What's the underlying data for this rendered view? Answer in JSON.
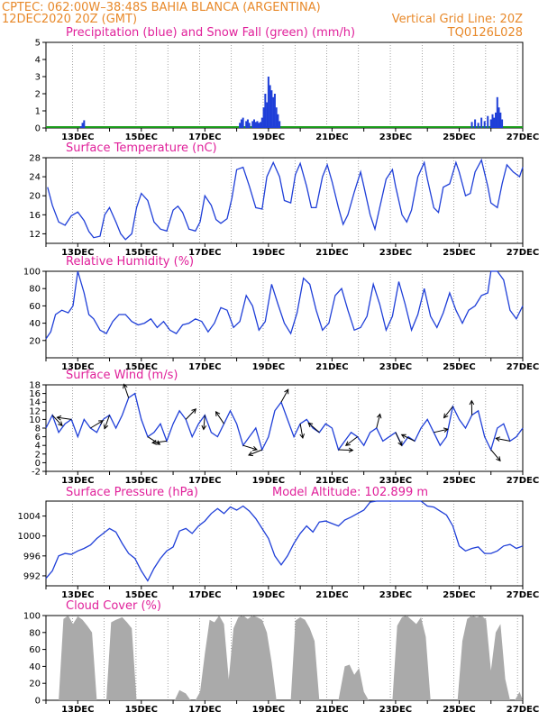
{
  "header": {
    "line1": "CPTEC:   062:00W–38:48S   BAHIA BLANCA (ARGENTINA)",
    "line2_left": "12DEC2020 20Z (GMT)",
    "line2_right": "Vertical Grid Line: 20Z",
    "line3_right": "TQ0126L028"
  },
  "x_tick_labels": [
    "13DEC",
    "15DEC",
    "17DEC",
    "19DEC",
    "21DEC",
    "23DEC",
    "25DEC",
    "27DEC"
  ],
  "colors": {
    "line": "#1f3fd8",
    "precip": "#1f3fd8",
    "snow": "#1a9a1a",
    "cloud": "#aaaaaa",
    "title": "#e0209a",
    "header": "#e8892a"
  },
  "chart_data": [
    {
      "type": "bar",
      "title": "Precipitation (blue) and Snow Fall (green) (mm/h)",
      "ylim": [
        0,
        5
      ],
      "yticks": [
        0,
        1,
        2,
        3,
        4,
        5
      ],
      "series": [
        {
          "name": "Precipitation",
          "values": [
            [
              13.1,
              0.1
            ],
            [
              13.15,
              0.3
            ],
            [
              13.2,
              0.45
            ],
            [
              18.1,
              0.3
            ],
            [
              18.15,
              0.5
            ],
            [
              18.2,
              0.6
            ],
            [
              18.3,
              0.4
            ],
            [
              18.35,
              0.5
            ],
            [
              18.4,
              0.3
            ],
            [
              18.5,
              0.4
            ],
            [
              18.55,
              0.5
            ],
            [
              18.6,
              0.35
            ],
            [
              18.65,
              0.4
            ],
            [
              18.7,
              0.3
            ],
            [
              18.75,
              0.35
            ],
            [
              18.8,
              0.6
            ],
            [
              18.85,
              1.2
            ],
            [
              18.9,
              2.0
            ],
            [
              18.95,
              1.5
            ],
            [
              19.0,
              3.0
            ],
            [
              19.05,
              2.5
            ],
            [
              19.1,
              2.2
            ],
            [
              19.15,
              1.8
            ],
            [
              19.2,
              2.0
            ],
            [
              19.25,
              1.2
            ],
            [
              19.3,
              0.8
            ],
            [
              19.35,
              0.4
            ],
            [
              25.4,
              0.35
            ],
            [
              25.5,
              0.5
            ],
            [
              25.6,
              0.3
            ],
            [
              25.7,
              0.6
            ],
            [
              25.8,
              0.4
            ],
            [
              25.9,
              0.7
            ],
            [
              26.0,
              0.5
            ],
            [
              26.05,
              0.8
            ],
            [
              26.1,
              0.6
            ],
            [
              26.15,
              0.9
            ],
            [
              26.2,
              1.8
            ],
            [
              26.25,
              1.2
            ],
            [
              26.3,
              0.9
            ],
            [
              26.35,
              0.5
            ]
          ]
        },
        {
          "name": "Snow Fall",
          "values": []
        }
      ]
    },
    {
      "type": "line",
      "title": "Surface Temperature (nC)",
      "ylim": [
        10,
        28
      ],
      "yticks": [
        12,
        16,
        20,
        24,
        28
      ],
      "x": [
        12.05,
        12.2,
        12.4,
        12.6,
        12.8,
        13.0,
        13.2,
        13.35,
        13.5,
        13.7,
        13.85,
        14.0,
        14.2,
        14.35,
        14.5,
        14.7,
        14.85,
        15.0,
        15.2,
        15.4,
        15.6,
        15.8,
        16.0,
        16.15,
        16.3,
        16.5,
        16.7,
        16.85,
        17.0,
        17.2,
        17.35,
        17.5,
        17.7,
        17.85,
        18.0,
        18.2,
        18.4,
        18.6,
        18.8,
        18.95,
        19.15,
        19.35,
        19.5,
        19.7,
        19.85,
        20.0,
        20.2,
        20.35,
        20.5,
        20.7,
        20.85,
        21.0,
        21.2,
        21.35,
        21.5,
        21.7,
        21.9,
        22.0,
        22.2,
        22.35,
        22.5,
        22.7,
        22.9,
        23.0,
        23.2,
        23.35,
        23.5,
        23.7,
        23.9,
        24.0,
        24.2,
        24.35,
        24.5,
        24.7,
        24.9,
        25.0,
        25.2,
        25.35,
        25.5,
        25.7,
        25.9,
        26.0,
        26.2,
        26.35,
        26.5,
        26.7,
        26.9,
        27.0
      ],
      "values": [
        21.8,
        18,
        14.5,
        13.8,
        15.8,
        16.6,
        14.8,
        12.5,
        11.2,
        11.5,
        16,
        17.5,
        14.5,
        12,
        10.8,
        12,
        17.5,
        20.5,
        19,
        14.5,
        13,
        12.6,
        17,
        17.8,
        16.5,
        13,
        12.6,
        14.5,
        20,
        18,
        15,
        14.2,
        15.2,
        19.5,
        25.5,
        26,
        22,
        17.5,
        17.2,
        24,
        27,
        24,
        19,
        18.5,
        24.5,
        26.8,
        22,
        17.5,
        17.5,
        24,
        26.5,
        23,
        17.5,
        14,
        16,
        20.8,
        25,
        22,
        16,
        13,
        17.5,
        23.5,
        25.5,
        22,
        16,
        14.5,
        17,
        24,
        27,
        23.5,
        17.5,
        16.5,
        21.8,
        22.5,
        27,
        25,
        20,
        20.5,
        25,
        27.5,
        22,
        18.5,
        17.5,
        22.5,
        26.5,
        25,
        24,
        26
      ]
    },
    {
      "type": "line",
      "title": "Relative Humidity (%)",
      "ylim": [
        0,
        100
      ],
      "yticks": [
        20,
        40,
        60,
        80,
        100
      ],
      "x": [
        12.0,
        12.15,
        12.3,
        12.5,
        12.7,
        12.85,
        13.0,
        13.2,
        13.35,
        13.5,
        13.7,
        13.9,
        14.1,
        14.3,
        14.5,
        14.7,
        14.9,
        15.1,
        15.3,
        15.5,
        15.7,
        15.9,
        16.1,
        16.3,
        16.5,
        16.7,
        16.9,
        17.1,
        17.3,
        17.5,
        17.7,
        17.9,
        18.1,
        18.3,
        18.5,
        18.7,
        18.9,
        19.1,
        19.3,
        19.5,
        19.7,
        19.9,
        20.1,
        20.3,
        20.5,
        20.7,
        20.9,
        21.1,
        21.3,
        21.5,
        21.7,
        21.9,
        22.1,
        22.3,
        22.5,
        22.7,
        22.9,
        23.1,
        23.3,
        23.5,
        23.7,
        23.9,
        24.1,
        24.3,
        24.5,
        24.7,
        24.9,
        25.1,
        25.3,
        25.5,
        25.7,
        25.9,
        26.0,
        26.2,
        26.4,
        26.6,
        26.8,
        27.0
      ],
      "values": [
        22,
        30,
        50,
        55,
        52,
        60,
        100,
        75,
        50,
        45,
        32,
        28,
        42,
        50,
        50,
        42,
        38,
        40,
        45,
        35,
        42,
        32,
        28,
        38,
        40,
        45,
        42,
        30,
        40,
        58,
        55,
        35,
        42,
        72,
        60,
        32,
        42,
        85,
        62,
        40,
        28,
        52,
        92,
        85,
        55,
        32,
        40,
        72,
        80,
        55,
        32,
        35,
        48,
        85,
        62,
        32,
        48,
        88,
        62,
        32,
        50,
        80,
        48,
        35,
        52,
        75,
        55,
        40,
        55,
        60,
        72,
        75,
        100,
        100,
        90,
        55,
        45,
        60
      ]
    },
    {
      "type": "line",
      "title": "Surface Wind (m/s)",
      "ylim": [
        -2,
        18
      ],
      "yticks": [
        -2,
        0,
        2,
        4,
        6,
        8,
        10,
        12,
        14,
        16,
        18
      ],
      "x": [
        12.0,
        12.2,
        12.4,
        12.6,
        12.8,
        13.0,
        13.2,
        13.4,
        13.6,
        13.8,
        14.0,
        14.2,
        14.4,
        14.6,
        14.8,
        15.0,
        15.2,
        15.4,
        15.6,
        15.8,
        16.0,
        16.2,
        16.4,
        16.6,
        16.8,
        17.0,
        17.2,
        17.4,
        17.6,
        17.8,
        18.0,
        18.2,
        18.4,
        18.6,
        18.8,
        19.0,
        19.2,
        19.4,
        19.6,
        19.8,
        20.0,
        20.2,
        20.4,
        20.6,
        20.8,
        21.0,
        21.2,
        21.4,
        21.6,
        21.8,
        22.0,
        22.2,
        22.4,
        22.6,
        22.8,
        23.0,
        23.2,
        23.4,
        23.6,
        23.8,
        24.0,
        24.2,
        24.4,
        24.6,
        24.8,
        25.0,
        25.2,
        25.4,
        25.6,
        25.8,
        26.0,
        26.2,
        26.4,
        26.6,
        26.8,
        27.0
      ],
      "values": [
        8,
        11,
        7,
        9,
        10,
        6,
        10,
        8,
        7,
        10,
        11,
        8,
        11,
        15,
        16,
        10,
        6,
        7,
        9,
        5,
        9,
        12,
        10,
        6,
        9,
        11,
        7,
        6,
        9,
        12,
        9,
        4,
        6,
        8,
        3,
        6,
        12,
        14,
        10,
        6,
        9,
        10,
        8,
        7,
        9,
        8,
        3,
        5,
        7,
        6,
        4,
        7,
        8,
        5,
        6,
        7,
        4,
        6,
        5,
        8,
        10,
        7,
        4,
        6,
        13,
        10,
        8,
        11,
        12,
        6,
        3,
        8,
        9,
        5,
        6,
        8
      ]
    },
    {
      "type": "line",
      "title": "Surface Pressure (hPa)",
      "subtitle": "Model Altitude: 102.899 m",
      "ylim": [
        990,
        1007
      ],
      "yticks": [
        992,
        996,
        1000,
        1004
      ],
      "x": [
        12.0,
        12.2,
        12.4,
        12.6,
        12.8,
        13.0,
        13.2,
        13.4,
        13.6,
        13.8,
        14.0,
        14.2,
        14.4,
        14.6,
        14.8,
        15.0,
        15.2,
        15.4,
        15.6,
        15.8,
        16.0,
        16.2,
        16.4,
        16.6,
        16.8,
        17.0,
        17.2,
        17.4,
        17.6,
        17.8,
        18.0,
        18.2,
        18.4,
        18.6,
        18.8,
        19.0,
        19.2,
        19.4,
        19.6,
        19.8,
        20.0,
        20.2,
        20.4,
        20.6,
        20.8,
        21.0,
        21.2,
        21.4,
        21.6,
        21.8,
        22.0,
        22.2,
        22.4,
        22.6,
        22.8,
        23.0,
        23.2,
        23.4,
        23.6,
        23.8,
        24.0,
        24.2,
        24.4,
        24.6,
        24.8,
        25.0,
        25.2,
        25.4,
        25.6,
        25.8,
        26.0,
        26.2,
        26.4,
        26.6,
        26.8,
        27.0
      ],
      "values": [
        991.5,
        993,
        996,
        996.5,
        996.3,
        997,
        997.5,
        998.2,
        999.5,
        1000.5,
        1001.5,
        1000.8,
        998.5,
        996.5,
        995.5,
        993,
        991,
        993.5,
        995.5,
        997,
        997.8,
        1001,
        1001.5,
        1000.5,
        1002,
        1003,
        1004.5,
        1005.5,
        1004.5,
        1005.8,
        1005.2,
        1006,
        1005,
        1003.5,
        1001.5,
        999.5,
        996,
        994.2,
        996,
        998.5,
        1000.5,
        1002,
        1000.8,
        1002.8,
        1003,
        1002.5,
        1002,
        1003.2,
        1003.8,
        1004.5,
        1005.2,
        1006.8,
        1007,
        1007,
        1007,
        1007,
        1007,
        1007,
        1007,
        1007,
        1006,
        1005.8,
        1005,
        1004.2,
        1002,
        998,
        997,
        997.5,
        997.8,
        996.5,
        996.5,
        997,
        998,
        998.3,
        997.5,
        998
      ]
    },
    {
      "type": "area",
      "title": "Cloud Cover (%)",
      "ylim": [
        0,
        100
      ],
      "yticks": [
        0,
        20,
        40,
        60,
        80,
        100
      ],
      "x": [
        12.0,
        12.4,
        12.55,
        12.7,
        12.85,
        13.0,
        13.15,
        13.3,
        13.45,
        13.6,
        13.75,
        13.9,
        14.05,
        14.2,
        14.4,
        14.55,
        14.7,
        14.85,
        15.0,
        15.15,
        15.3,
        15.45,
        15.6,
        15.75,
        15.9,
        16.05,
        16.2,
        16.4,
        16.55,
        16.7,
        16.85,
        17.0,
        17.15,
        17.3,
        17.45,
        17.6,
        17.75,
        17.9,
        18.05,
        18.2,
        18.35,
        18.5,
        18.65,
        18.8,
        18.95,
        19.1,
        19.25,
        19.4,
        19.55,
        19.7,
        19.85,
        20.0,
        20.15,
        20.3,
        20.45,
        20.6,
        20.75,
        20.9,
        21.05,
        21.2,
        21.4,
        21.55,
        21.7,
        21.85,
        22.0,
        22.15,
        22.3,
        22.45,
        22.6,
        22.75,
        22.9,
        23.05,
        23.2,
        23.35,
        23.5,
        23.65,
        23.8,
        23.95,
        24.1,
        24.3,
        24.5,
        24.65,
        24.8,
        24.95,
        25.1,
        25.25,
        25.4,
        25.55,
        25.7,
        25.85,
        26.0,
        26.15,
        26.3,
        26.45,
        26.6,
        26.75,
        26.9,
        27.0
      ],
      "values": [
        0,
        0,
        96,
        100,
        90,
        99,
        95,
        88,
        80,
        0,
        0,
        0,
        92,
        95,
        98,
        92,
        85,
        0,
        0,
        0,
        0,
        0,
        0,
        0,
        0,
        0,
        12,
        8,
        0,
        0,
        10,
        55,
        95,
        92,
        100,
        90,
        25,
        85,
        98,
        100,
        96,
        100,
        98,
        95,
        80,
        45,
        0,
        0,
        0,
        0,
        94,
        98,
        95,
        85,
        70,
        0,
        0,
        0,
        0,
        0,
        40,
        42,
        30,
        38,
        10,
        0,
        0,
        0,
        0,
        0,
        0,
        88,
        98,
        100,
        95,
        90,
        98,
        75,
        0,
        0,
        0,
        0,
        0,
        0,
        70,
        96,
        100,
        98,
        100,
        95,
        35,
        80,
        90,
        25,
        0,
        0,
        10,
        0
      ]
    }
  ]
}
